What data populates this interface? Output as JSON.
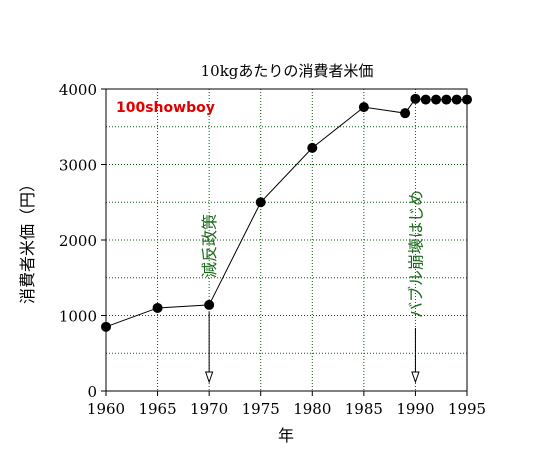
{
  "colors": {
    "grid": "#0a5a0a",
    "annotation": "#1c6b1c",
    "watermark": "#e00000",
    "line": "#000000"
  },
  "chart_data": {
    "type": "line",
    "title": "10kgあたりの消費者米価",
    "xlabel": "年",
    "ylabel": "消費者米価（円）",
    "watermark": "100showboy",
    "xlim": [
      1960,
      1995
    ],
    "ylim": [
      0,
      4000
    ],
    "x_ticks": [
      "1960",
      "1965",
      "1970",
      "1975",
      "1980",
      "1985",
      "1990",
      "1995"
    ],
    "y_ticks": [
      "0",
      "1000",
      "2000",
      "3000",
      "4000"
    ],
    "grid": true,
    "series": [
      {
        "x": [
          1960,
          1965,
          1970,
          1975,
          1980,
          1985,
          1989,
          1990,
          1991,
          1992,
          1993,
          1994,
          1995
        ],
        "y": [
          850,
          1100,
          1140,
          2500,
          3220,
          3760,
          3680,
          3870,
          3860,
          3860,
          3860,
          3860,
          3860
        ]
      }
    ],
    "annotations": [
      {
        "text": "減反政策",
        "x": 1970
      },
      {
        "text": "バブル崩壊はじめ",
        "x": 1990
      }
    ]
  }
}
